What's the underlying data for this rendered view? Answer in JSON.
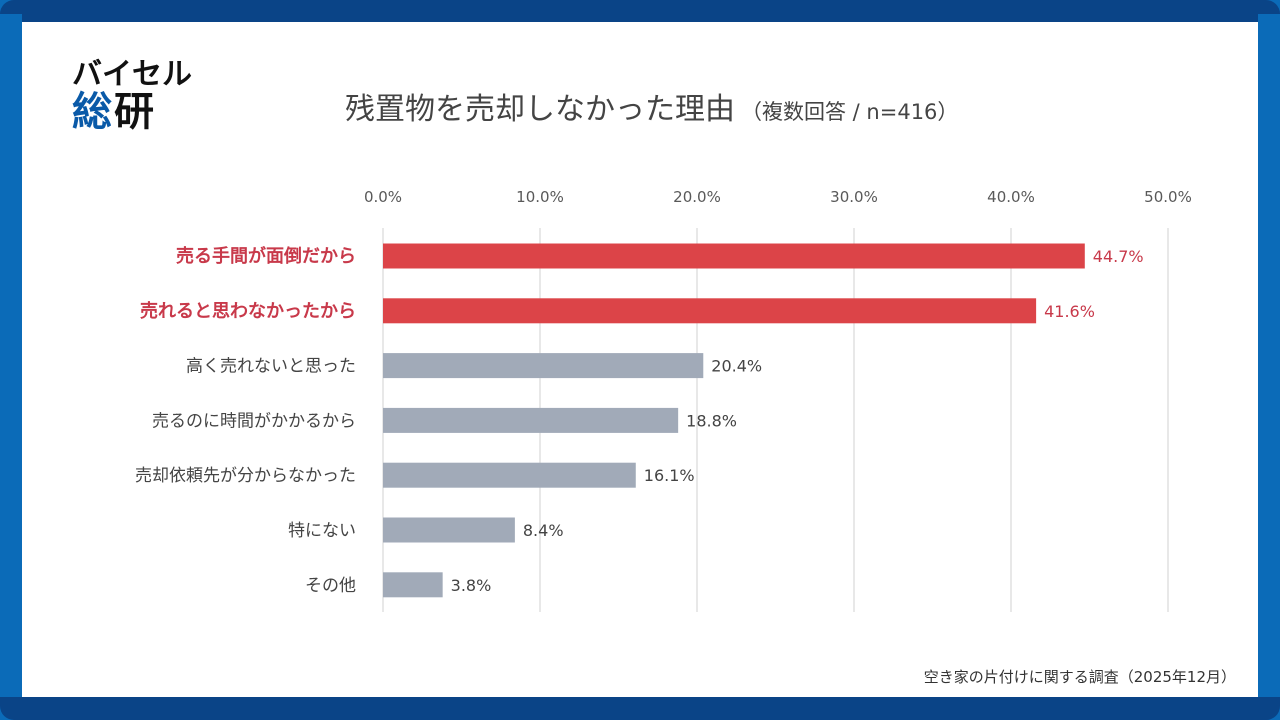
{
  "brand": {
    "logo_line1": "バイセル",
    "logo_line2_a": "総",
    "logo_line2_b": "研"
  },
  "header": {
    "title": "残置物を売却しなかった理由",
    "subtitle": "（複数回答 / n=416）"
  },
  "footer": {
    "source": "空き家の片付けに関する調査（2025年12月）"
  },
  "colors": {
    "highlight_bar": "#dc4448",
    "highlight_label": "#c8394a",
    "normal_bar": "#a1aab8",
    "normal_label": "#444444",
    "frame_dark": "#0a4487",
    "frame_light": "#0b6bb8"
  },
  "chart_data": {
    "type": "bar",
    "orientation": "horizontal",
    "title": "残置物を売却しなかった理由（複数回答 / n=416）",
    "xlabel": "",
    "ylabel": "",
    "xlim": [
      0,
      50
    ],
    "x_ticks": [
      0,
      10,
      20,
      30,
      40,
      50
    ],
    "x_tick_labels": [
      "0.0%",
      "10.0%",
      "20.0%",
      "30.0%",
      "40.0%",
      "50.0%"
    ],
    "x_axis_position": "top",
    "grid": true,
    "categories": [
      "売る手間が面倒だから",
      "売れると思わなかったから",
      "高く売れないと思った",
      "売るのに時間がかかるから",
      "売却依頼先が分からなかった",
      "特にない",
      "その他"
    ],
    "values": [
      44.7,
      41.6,
      20.4,
      18.8,
      16.1,
      8.4,
      3.8
    ],
    "value_labels": [
      "44.7%",
      "41.6%",
      "20.4%",
      "18.8%",
      "16.1%",
      "8.4%",
      "3.8%"
    ],
    "highlighted": [
      true,
      true,
      false,
      false,
      false,
      false,
      false
    ],
    "unit": "%"
  }
}
